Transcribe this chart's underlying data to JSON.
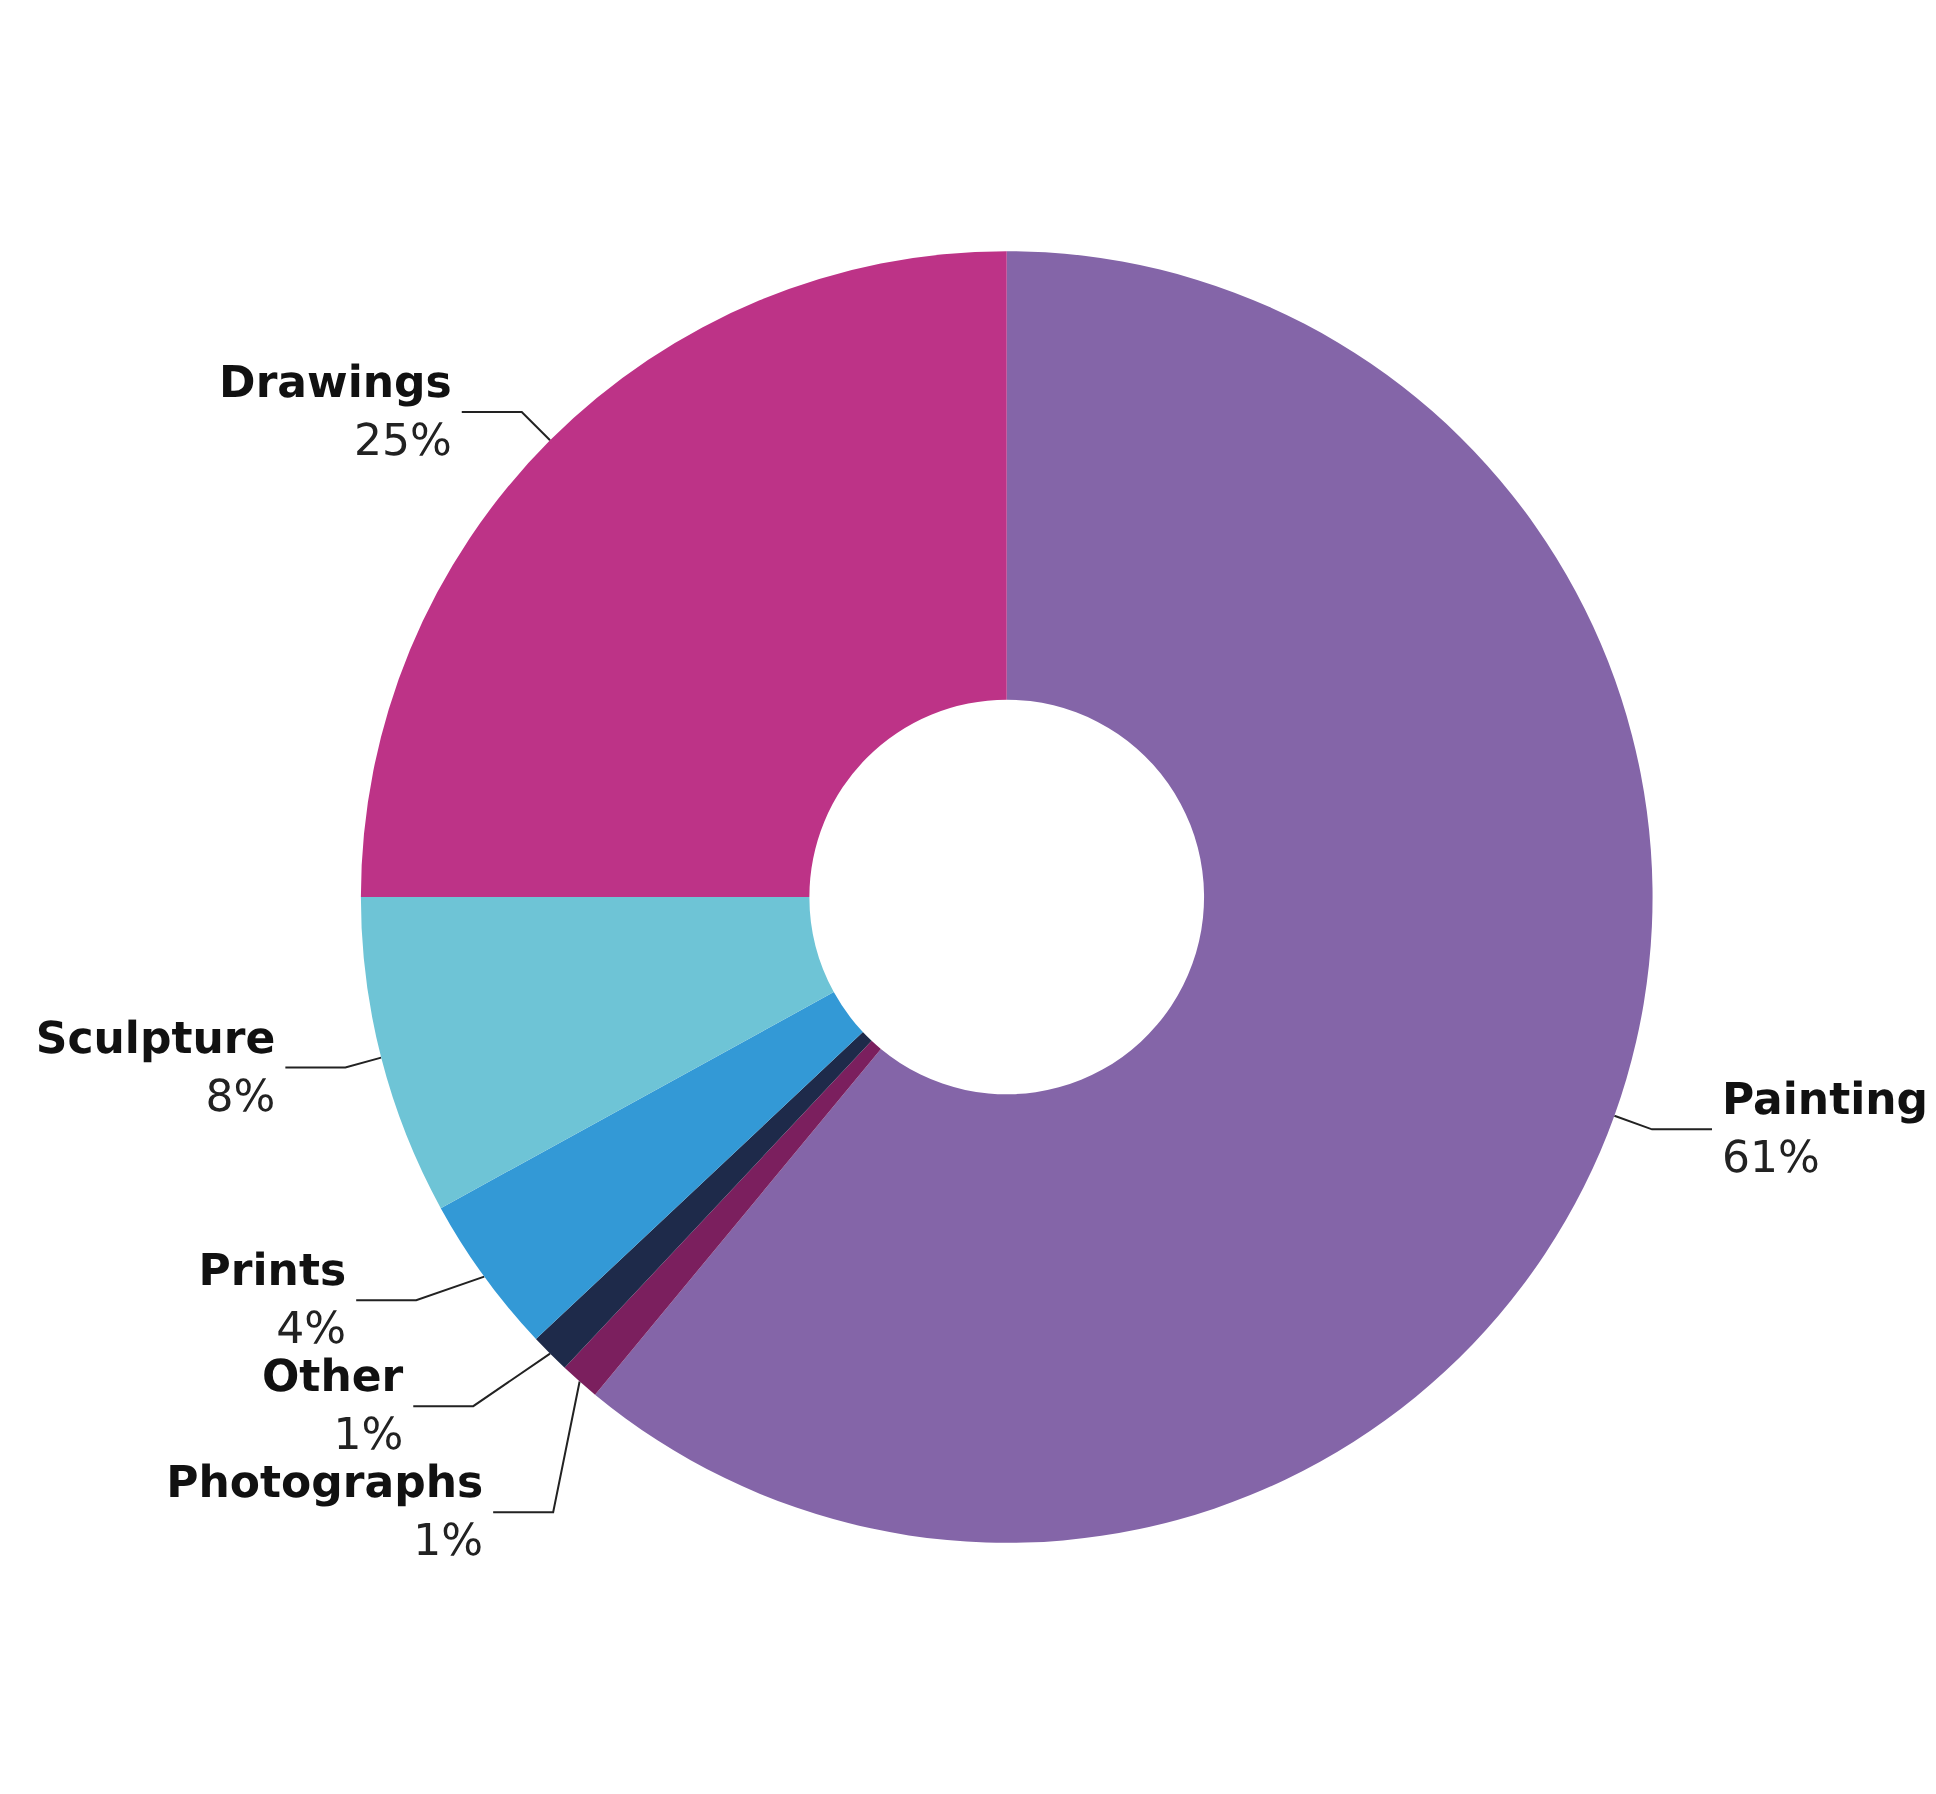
{
  "chart_data": {
    "type": "donut",
    "categories": [
      "Painting",
      "Photographs",
      "Other",
      "Prints",
      "Sculpture",
      "Drawings"
    ],
    "values": [
      61,
      1,
      1,
      4,
      8,
      25
    ],
    "value_labels": [
      "61%",
      "1%",
      "1%",
      "4%",
      "8%",
      "25%"
    ],
    "colors": [
      "#8465a8",
      "#7b1f5e",
      "#1e2a4a",
      "#3399d6",
      "#6ec4d6",
      "#bd3387"
    ]
  }
}
